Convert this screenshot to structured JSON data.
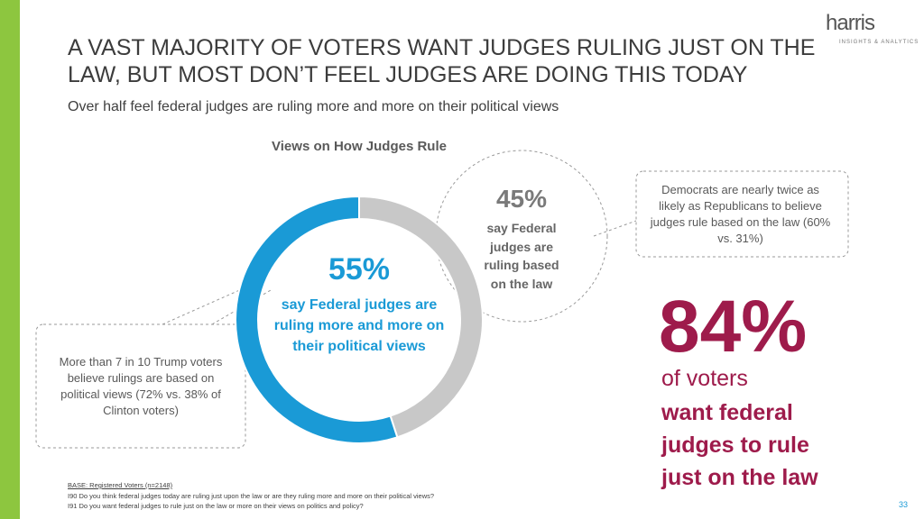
{
  "title": "A VAST MAJORITY OF VOTERS WANT JUDGES RULING JUST ON THE LAW, BUT MOST DON’T FEEL JUDGES ARE DOING THIS TODAY",
  "subtitle": "Over half feel federal judges are ruling more and more on their political views",
  "logo": {
    "name": "harris",
    "tagline": "INSIGHTS & ANALYTICS"
  },
  "chart_data": {
    "type": "donut",
    "title": "Views on How Judges Rule",
    "categories": [
      "say Federal judges are ruling based on the law",
      "say Federal judges are ruling more and more on their political views"
    ],
    "values": [
      45,
      55
    ],
    "value_labels": [
      "45%",
      "55%"
    ],
    "colors": [
      "#c8c8c8",
      "#1a9ad6"
    ]
  },
  "callouts": {
    "right": "Democrats are nearly twice as likely as Republicans to believe judges rule based on the law (60% vs. 31%)",
    "left": "More than 7 in 10 Trump voters believe rulings are based on political views (72% vs. 38% of Clinton voters)"
  },
  "stat": {
    "value": "84%",
    "line1": "of voters",
    "line2": "want federal judges to rule just on the law"
  },
  "footnotes": [
    "BASE: Registered Voters (n=2148)",
    "I90 Do you think federal judges today are ruling just upon the law or are they ruling more and more on their political views?",
    "I91 Do you want federal judges to rule just on the law or more on their views on politics and policy?"
  ],
  "page_number": "33"
}
